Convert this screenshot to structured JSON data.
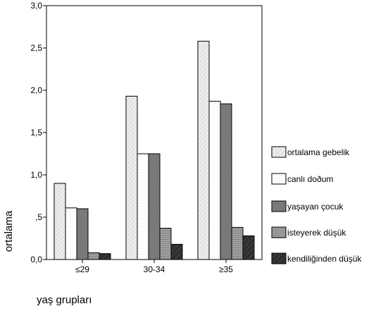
{
  "chart_data": {
    "type": "bar",
    "categories": [
      "≤29",
      "30-34",
      "≥35"
    ],
    "series": [
      {
        "name": "ortalama gebelik",
        "values": [
          0.9,
          1.93,
          2.58
        ]
      },
      {
        "name": "canlı doðum",
        "values": [
          0.61,
          1.25,
          1.87
        ]
      },
      {
        "name": "yaşayan çocuk",
        "values": [
          0.6,
          1.25,
          1.84
        ]
      },
      {
        "name": "isteyerek düşük",
        "values": [
          0.08,
          0.37,
          0.38
        ]
      },
      {
        "name": "kendiliğinden düşük",
        "values": [
          0.07,
          0.18,
          0.28
        ]
      }
    ],
    "yticks": [
      "0,0",
      ",5",
      "1,0",
      "1,5",
      "2,0",
      "2,5",
      "3,0"
    ],
    "ylim": [
      0,
      3
    ],
    "xlabel": "yaş grupları",
    "ylabel": "ortalama",
    "legend_position": "right",
    "grid": false
  }
}
